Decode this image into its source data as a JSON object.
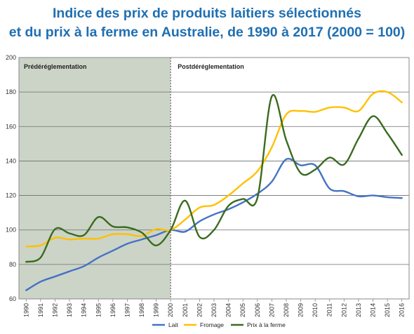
{
  "chart_data": {
    "type": "line",
    "title": "Indice des prix de produits laitiers sélectionnés",
    "subtitle": "et du prix à la ferme en Australie, de 1990 à 2017 (2000 = 100)",
    "xlabel": "",
    "ylabel": "",
    "ylim": [
      60,
      200
    ],
    "yticks": [
      "60",
      "80",
      "100",
      "120",
      "140",
      "160",
      "180",
      "200"
    ],
    "x": [
      1990,
      1991,
      1992,
      1993,
      1994,
      1995,
      1996,
      1997,
      1998,
      1999,
      2000,
      2001,
      2002,
      2003,
      2004,
      2005,
      2006,
      2007,
      2008,
      2009,
      2010,
      2011,
      2012,
      2013,
      2014,
      2015,
      2016
    ],
    "xtick_labels": [
      "1990",
      "1991",
      "1992",
      "1993",
      "1994",
      "1995",
      "1996",
      "1997",
      "1998",
      "1999",
      "2000",
      "2001",
      "2002",
      "2003",
      "2004",
      "2005",
      "2006",
      "2007",
      "2008",
      "2009",
      "2010",
      "2011",
      "2012",
      "2013",
      "2014",
      "2015",
      "2016"
    ],
    "regions": [
      {
        "label": "Prédéréglementation",
        "from": 1989.5,
        "to": 2000,
        "color": "#ccd4c8"
      },
      {
        "label": "Postdéréglementation",
        "from": 2000,
        "to": 2016.5,
        "color": "#ffffff"
      }
    ],
    "series": [
      {
        "name": "Lait",
        "color": "#4472c4",
        "values": [
          65,
          70,
          73,
          76,
          79,
          84,
          88,
          92,
          94.5,
          97,
          100,
          99,
          105,
          109,
          112,
          116,
          121,
          128,
          141,
          137.5,
          137.5,
          124,
          122.5,
          119.5,
          120,
          119,
          118.5
        ]
      },
      {
        "name": "Fromage",
        "color": "#ffc000",
        "values": [
          90.5,
          91,
          95.5,
          94.5,
          95,
          95,
          97.5,
          97.5,
          96.5,
          100.5,
          100,
          106,
          113,
          114.5,
          120,
          127,
          134,
          148,
          167,
          169,
          168.5,
          171,
          171,
          169,
          179,
          180,
          174
        ]
      },
      {
        "name": "Prix à la ferme",
        "color": "#3a6b1f",
        "values": [
          81.5,
          84,
          100.5,
          98,
          97,
          107.5,
          102,
          101.5,
          98.5,
          91,
          100,
          117,
          96,
          100,
          114,
          118,
          118.5,
          177.5,
          152,
          133,
          135,
          142,
          138,
          153,
          166,
          156,
          143.5
        ]
      }
    ],
    "grid": true,
    "legend_position": "bottom"
  }
}
